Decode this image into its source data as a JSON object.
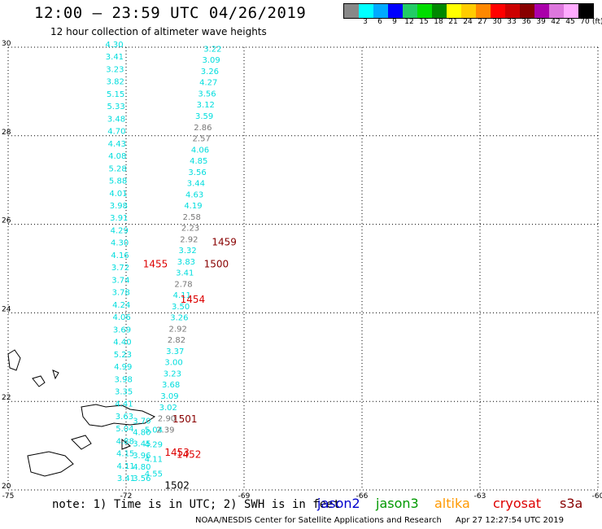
{
  "header": {
    "title": "12:00 – 23:59 UTC 04/26/2019",
    "subtitle": "12 hour collection of altimeter wave heights"
  },
  "scale": {
    "unit": "(ft)",
    "colors": [
      "#888888",
      "#00ffff",
      "#00aaff",
      "#0000ff",
      "#22cc66",
      "#00dd00",
      "#008800",
      "#ffff00",
      "#ffcc00",
      "#ff8800",
      "#ff0000",
      "#cc0000",
      "#880000",
      "#aa00aa",
      "#dd77dd",
      "#ffaaff",
      "#000000"
    ],
    "labels": [
      "",
      "3",
      "6",
      "9",
      "12",
      "15",
      "18",
      "21",
      "24",
      "27",
      "30",
      "33",
      "36",
      "39",
      "42",
      "45",
      "70"
    ]
  },
  "axes": {
    "lon_ticks": [
      "-75",
      "-72",
      "-69",
      "-66",
      "-63",
      "-60"
    ],
    "lat_ticks": [
      "30",
      "28",
      "26",
      "24",
      "22",
      "20"
    ],
    "lon_range": [
      -75,
      -60
    ],
    "lat_range": [
      20,
      30
    ]
  },
  "tracks": [
    {
      "satellite": "jason3",
      "color": "#00dddd",
      "time_label": "1455",
      "time_color": "#dd0000",
      "start": [
        -72.3,
        30.0
      ],
      "end": [
        -72.0,
        20.2
      ],
      "values": [
        "4.30",
        "3.41",
        "3.23",
        "3.82",
        "5.15",
        "5.33",
        "3.48",
        "4.70",
        "4.43",
        "4.08",
        "5.28",
        "5.88",
        "4.01",
        "3.98",
        "3.91",
        "4.29",
        "4.30",
        "4.16",
        "3.72",
        "3.74",
        "3.78",
        "4.24",
        "4.06",
        "3.69",
        "4.40",
        "5.23",
        "4.99",
        "3.98",
        "3.35",
        "4.41",
        "3.63",
        "5.04",
        "4.88",
        "4.15",
        "4.11",
        "3.41"
      ]
    },
    {
      "satellite": "jason3",
      "color": "#00dddd",
      "time_label": "1453",
      "time_color": "#dd0000",
      "start": [
        -71.6,
        21.5
      ],
      "end": [
        -71.6,
        20.2
      ],
      "values": [
        "3.70",
        "4.80",
        "3.45",
        "3.96",
        "4.80",
        "3.56"
      ]
    },
    {
      "satellite": "jason3",
      "color": "#00dddd",
      "time_label": "1452",
      "time_color": "#dd0000",
      "start": [
        -71.3,
        21.3
      ],
      "end": [
        -71.3,
        20.3
      ],
      "values": [
        "5.04",
        "4.29",
        "4.11",
        "4.55"
      ]
    },
    {
      "satellite": "cryosat",
      "color": "#00dddd",
      "time_label": "1459",
      "time_color": "#880000",
      "start": [
        -69.8,
        29.9
      ],
      "end": [
        -71.0,
        21.3
      ],
      "values": [
        "3.22",
        "3.09",
        "3.26",
        "4.27",
        "3.56",
        "3.12",
        "3.59",
        "2.86",
        "2.57",
        "4.06",
        "4.85",
        "3.56",
        "3.44",
        "4.63",
        "4.19",
        "2.58",
        "2.23",
        "2.92",
        "3.32",
        "3.83",
        "3.41",
        "2.78",
        "4.11",
        "3.50",
        "3.26",
        "2.92",
        "2.82",
        "3.37",
        "3.00",
        "3.23",
        "3.68",
        "3.09",
        "3.02",
        "2.90",
        "2.39"
      ]
    },
    {
      "satellite": "s3a",
      "color": "#00dddd",
      "time_label": "1501",
      "time_color": "#880000",
      "start": [
        -71.4,
        21.6
      ],
      "end": [
        -71.4,
        21.6
      ],
      "values": []
    },
    {
      "satellite": "s3a",
      "color": "#00dddd",
      "time_label": "1500",
      "time_color": "#880000",
      "start": [
        -70.6,
        25.1
      ],
      "end": [
        -70.6,
        25.1
      ],
      "values": []
    },
    {
      "satellite": "jason3",
      "color": "#00dddd",
      "time_label": "1454",
      "time_color": "#dd0000",
      "start": [
        -71.2,
        24.3
      ],
      "end": [
        -71.2,
        24.3
      ],
      "values": []
    },
    {
      "satellite": "s3a",
      "color": "#00dddd",
      "time_label": "1502",
      "time_color": "#000000",
      "start": [
        -71.6,
        20.1
      ],
      "end": [
        -71.6,
        20.1
      ],
      "values": []
    }
  ],
  "note": "note: 1) Time is in UTC; 2) SWH is in feet",
  "legend": [
    {
      "name": "jason2",
      "color": "#0000cc"
    },
    {
      "name": "jason3",
      "color": "#009900"
    },
    {
      "name": "altika",
      "color": "#ff9900"
    },
    {
      "name": "cryosat",
      "color": "#dd0000"
    },
    {
      "name": "s3a",
      "color": "#880000"
    }
  ],
  "credit": {
    "source": "NOAA/NESDIS Center for Satellite Applications and Research",
    "timestamp": "Apr 27 12:27:54 UTC 2019"
  }
}
